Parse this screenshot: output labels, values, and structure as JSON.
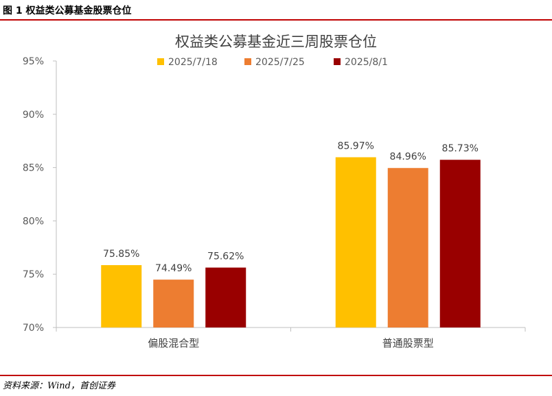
{
  "figure": {
    "caption": "图 1  权益类公募基金股票仓位",
    "source": "资料来源：Wind，首创证券"
  },
  "chart_data": {
    "type": "bar",
    "title": "权益类公募基金近三周股票仓位",
    "categories": [
      "偏股混合型",
      "普通股票型"
    ],
    "series": [
      {
        "name": "2025/7/18",
        "color": "#ffc000",
        "values": [
          75.85,
          85.97
        ],
        "labels": [
          "75.85%",
          "85.97%"
        ]
      },
      {
        "name": "2025/7/25",
        "color": "#ed7d31",
        "values": [
          74.49,
          84.96
        ],
        "labels": [
          "74.49%",
          "84.96%"
        ]
      },
      {
        "name": "2025/8/1",
        "color": "#990000",
        "values": [
          75.62,
          85.73
        ],
        "labels": [
          "75.62%",
          "85.73%"
        ]
      }
    ],
    "yticks": [
      "70%",
      "75%",
      "80%",
      "85%",
      "90%",
      "95%"
    ],
    "ylim": [
      70,
      95
    ],
    "xlabel": "",
    "ylabel": "",
    "grid": false,
    "legend": "top-center"
  }
}
